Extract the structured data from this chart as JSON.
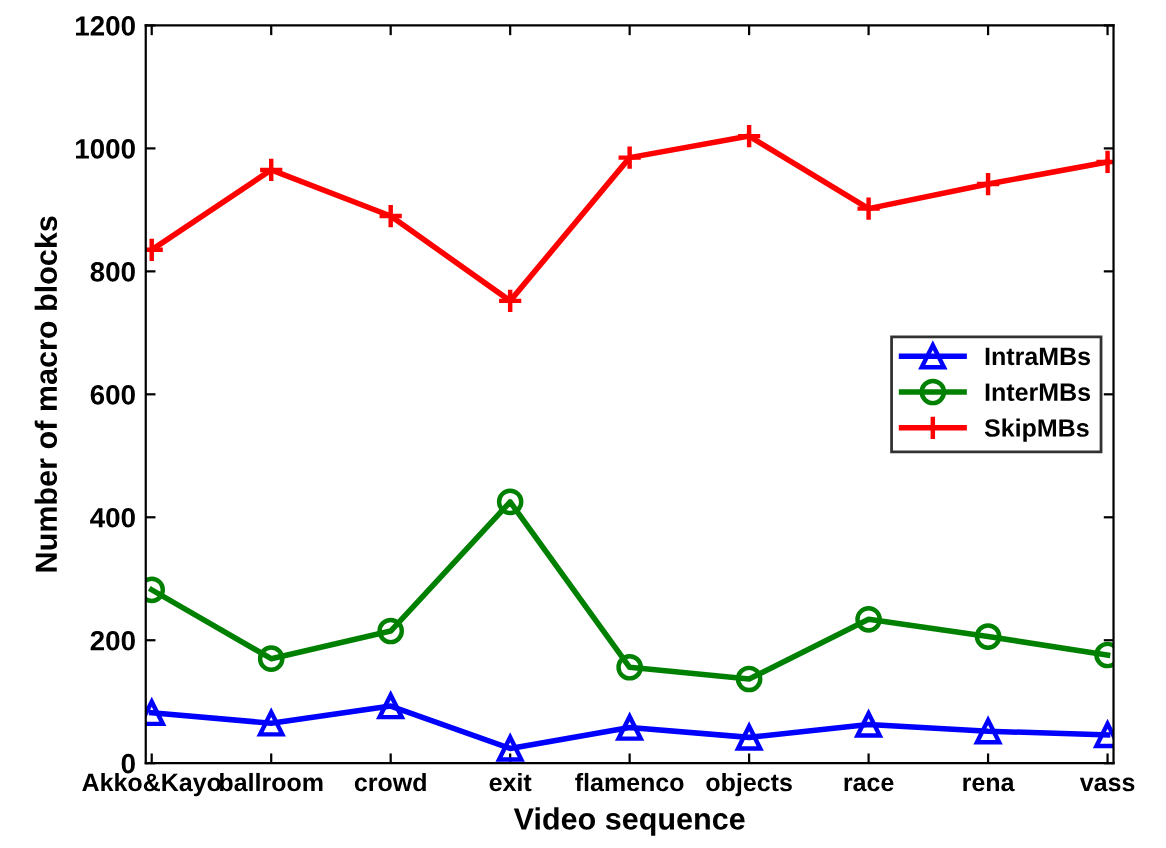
{
  "chart_data": {
    "type": "line",
    "xlabel": "Video sequence",
    "ylabel": "Number of macro blocks",
    "categories": [
      "Akko&Kayo",
      "ballroom",
      "crowd",
      "exit",
      "flamenco",
      "objects",
      "race",
      "rena",
      "vass"
    ],
    "series": [
      {
        "name": "IntraMBs",
        "color": "#0000ff",
        "marker": "triangle",
        "values": [
          82,
          65,
          93,
          24,
          58,
          42,
          63,
          52,
          46
        ]
      },
      {
        "name": "InterMBs",
        "color": "#008000",
        "marker": "circle",
        "values": [
          282,
          170,
          215,
          425,
          156,
          137,
          234,
          206,
          176
        ]
      },
      {
        "name": "SkipMBs",
        "color": "#ff0000",
        "marker": "cross",
        "values": [
          835,
          965,
          890,
          752,
          985,
          1020,
          902,
          942,
          978
        ]
      }
    ],
    "ylim": [
      0,
      1200
    ],
    "yticks": [
      0,
      200,
      400,
      600,
      800,
      1000,
      1200
    ],
    "grid": false,
    "legend": "right",
    "line_style": "solid"
  }
}
